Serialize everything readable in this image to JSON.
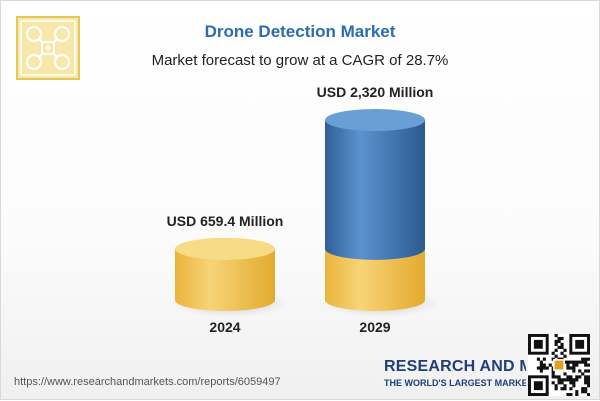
{
  "header": {
    "title": "Drone Detection Market",
    "subtitle": "Market forecast to grow at a CAGR of 28.7%"
  },
  "chart_data": {
    "type": "bar",
    "style": "3d-cylinder",
    "categories": [
      "2024",
      "2029"
    ],
    "values": [
      659.4,
      2320
    ],
    "unit": "USD Million",
    "value_labels": [
      "USD 659.4 Million",
      "USD 2,320 Million"
    ],
    "title": "Drone Detection Market",
    "subtitle": "Market forecast to grow at a CAGR of 28.7%",
    "xlabel": "",
    "ylabel": "",
    "grid": false,
    "colors": {
      "base_segment": "#f2c24f",
      "growth_segment": "#3f78b5"
    }
  },
  "footer": {
    "url": "https://www.researchandmarkets.com/reports/6059497",
    "brand_name": "RESEARCH AND MARKETS",
    "brand_tagline": "THE WORLD'S LARGEST MARKET RESEARCH STORE"
  },
  "icons": {
    "logo": "drone-icon",
    "qr": "qr-code-icon"
  }
}
